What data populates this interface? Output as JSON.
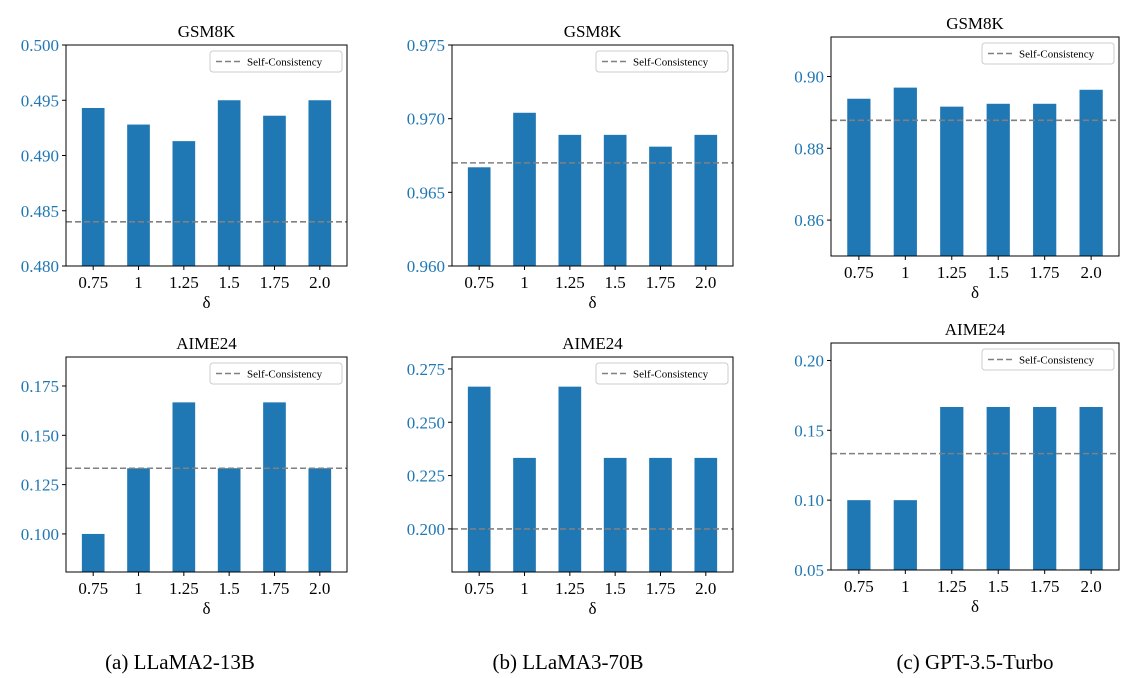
{
  "colors": {
    "bar": "#1f77b4",
    "tick_label": "#1f77b4",
    "reference_line": "#808080"
  },
  "captions": [
    "(a) LLaMA2-13B",
    "(b) LLaMA3-70B",
    "(c) GPT-3.5-Turbo"
  ],
  "chart_data": [
    {
      "type": "bar",
      "model": "(a) LLaMA2-13B",
      "title": "GSM8K",
      "xlabel": "δ",
      "categories": [
        "0.75",
        "1",
        "1.25",
        "1.5",
        "1.75",
        "2.0"
      ],
      "values": [
        0.4943,
        0.4928,
        0.4913,
        0.495,
        0.4936,
        0.495
      ],
      "reference": {
        "name": "Self-Consistency",
        "value": 0.484
      },
      "ylim": [
        0.48,
        0.5
      ],
      "yticks": [
        "0.480",
        "0.485",
        "0.490",
        "0.495",
        "0.500"
      ],
      "legend": "top-right",
      "grid": false
    },
    {
      "type": "bar",
      "model": "(b) LLaMA3-70B",
      "title": "GSM8K",
      "xlabel": "δ",
      "categories": [
        "0.75",
        "1",
        "1.25",
        "1.5",
        "1.75",
        "2.0"
      ],
      "values": [
        0.9667,
        0.9704,
        0.9689,
        0.9689,
        0.9681,
        0.9689
      ],
      "reference": {
        "name": "Self-Consistency",
        "value": 0.967
      },
      "ylim": [
        0.96,
        0.975
      ],
      "yticks": [
        "0.960",
        "0.965",
        "0.970",
        "0.975"
      ],
      "legend": "top-right",
      "grid": false
    },
    {
      "type": "bar",
      "model": "(c) GPT-3.5-Turbo",
      "title": "GSM8K",
      "xlabel": "δ",
      "categories": [
        "0.75",
        "1",
        "1.25",
        "1.5",
        "1.75",
        "2.0"
      ],
      "values": [
        0.8938,
        0.8969,
        0.8916,
        0.8924,
        0.8924,
        0.8963
      ],
      "reference": {
        "name": "Self-Consistency",
        "value": 0.8878
      },
      "ylim": [
        0.85,
        0.911
      ],
      "yticks": [
        "0.86",
        "0.88",
        "0.90"
      ],
      "legend": "top-right",
      "grid": false
    },
    {
      "type": "bar",
      "model": "(a) LLaMA2-13B",
      "title": "AIME24",
      "xlabel": "δ",
      "categories": [
        "0.75",
        "1",
        "1.25",
        "1.5",
        "1.75",
        "2.0"
      ],
      "values": [
        0.1,
        0.1333,
        0.1667,
        0.1333,
        0.1667,
        0.1333
      ],
      "reference": {
        "name": "Self-Consistency",
        "value": 0.1333
      },
      "ylim": [
        0.0807,
        0.1897
      ],
      "yticks": [
        "0.100",
        "0.125",
        "0.150",
        "0.175"
      ],
      "legend": "top-right",
      "grid": false
    },
    {
      "type": "bar",
      "model": "(b) LLaMA3-70B",
      "title": "AIME24",
      "xlabel": "δ",
      "categories": [
        "0.75",
        "1",
        "1.25",
        "1.5",
        "1.75",
        "2.0"
      ],
      "values": [
        0.2667,
        0.2333,
        0.2667,
        0.2333,
        0.2333,
        0.2333
      ],
      "reference": {
        "name": "Self-Consistency",
        "value": 0.2
      },
      "ylim": [
        0.1798,
        0.2806
      ],
      "yticks": [
        "0.200",
        "0.225",
        "0.250",
        "0.275"
      ],
      "legend": "top-right",
      "grid": false
    },
    {
      "type": "bar",
      "model": "(c) GPT-3.5-Turbo",
      "title": "AIME24",
      "xlabel": "δ",
      "categories": [
        "0.75",
        "1",
        "1.25",
        "1.5",
        "1.75",
        "2.0"
      ],
      "values": [
        0.1,
        0.1,
        0.1667,
        0.1667,
        0.1667,
        0.1667
      ],
      "reference": {
        "name": "Self-Consistency",
        "value": 0.1333
      },
      "ylim": [
        0.05,
        0.2125
      ],
      "yticks": [
        "0.05",
        "0.10",
        "0.15",
        "0.20"
      ],
      "legend": "top-right",
      "grid": false
    }
  ]
}
